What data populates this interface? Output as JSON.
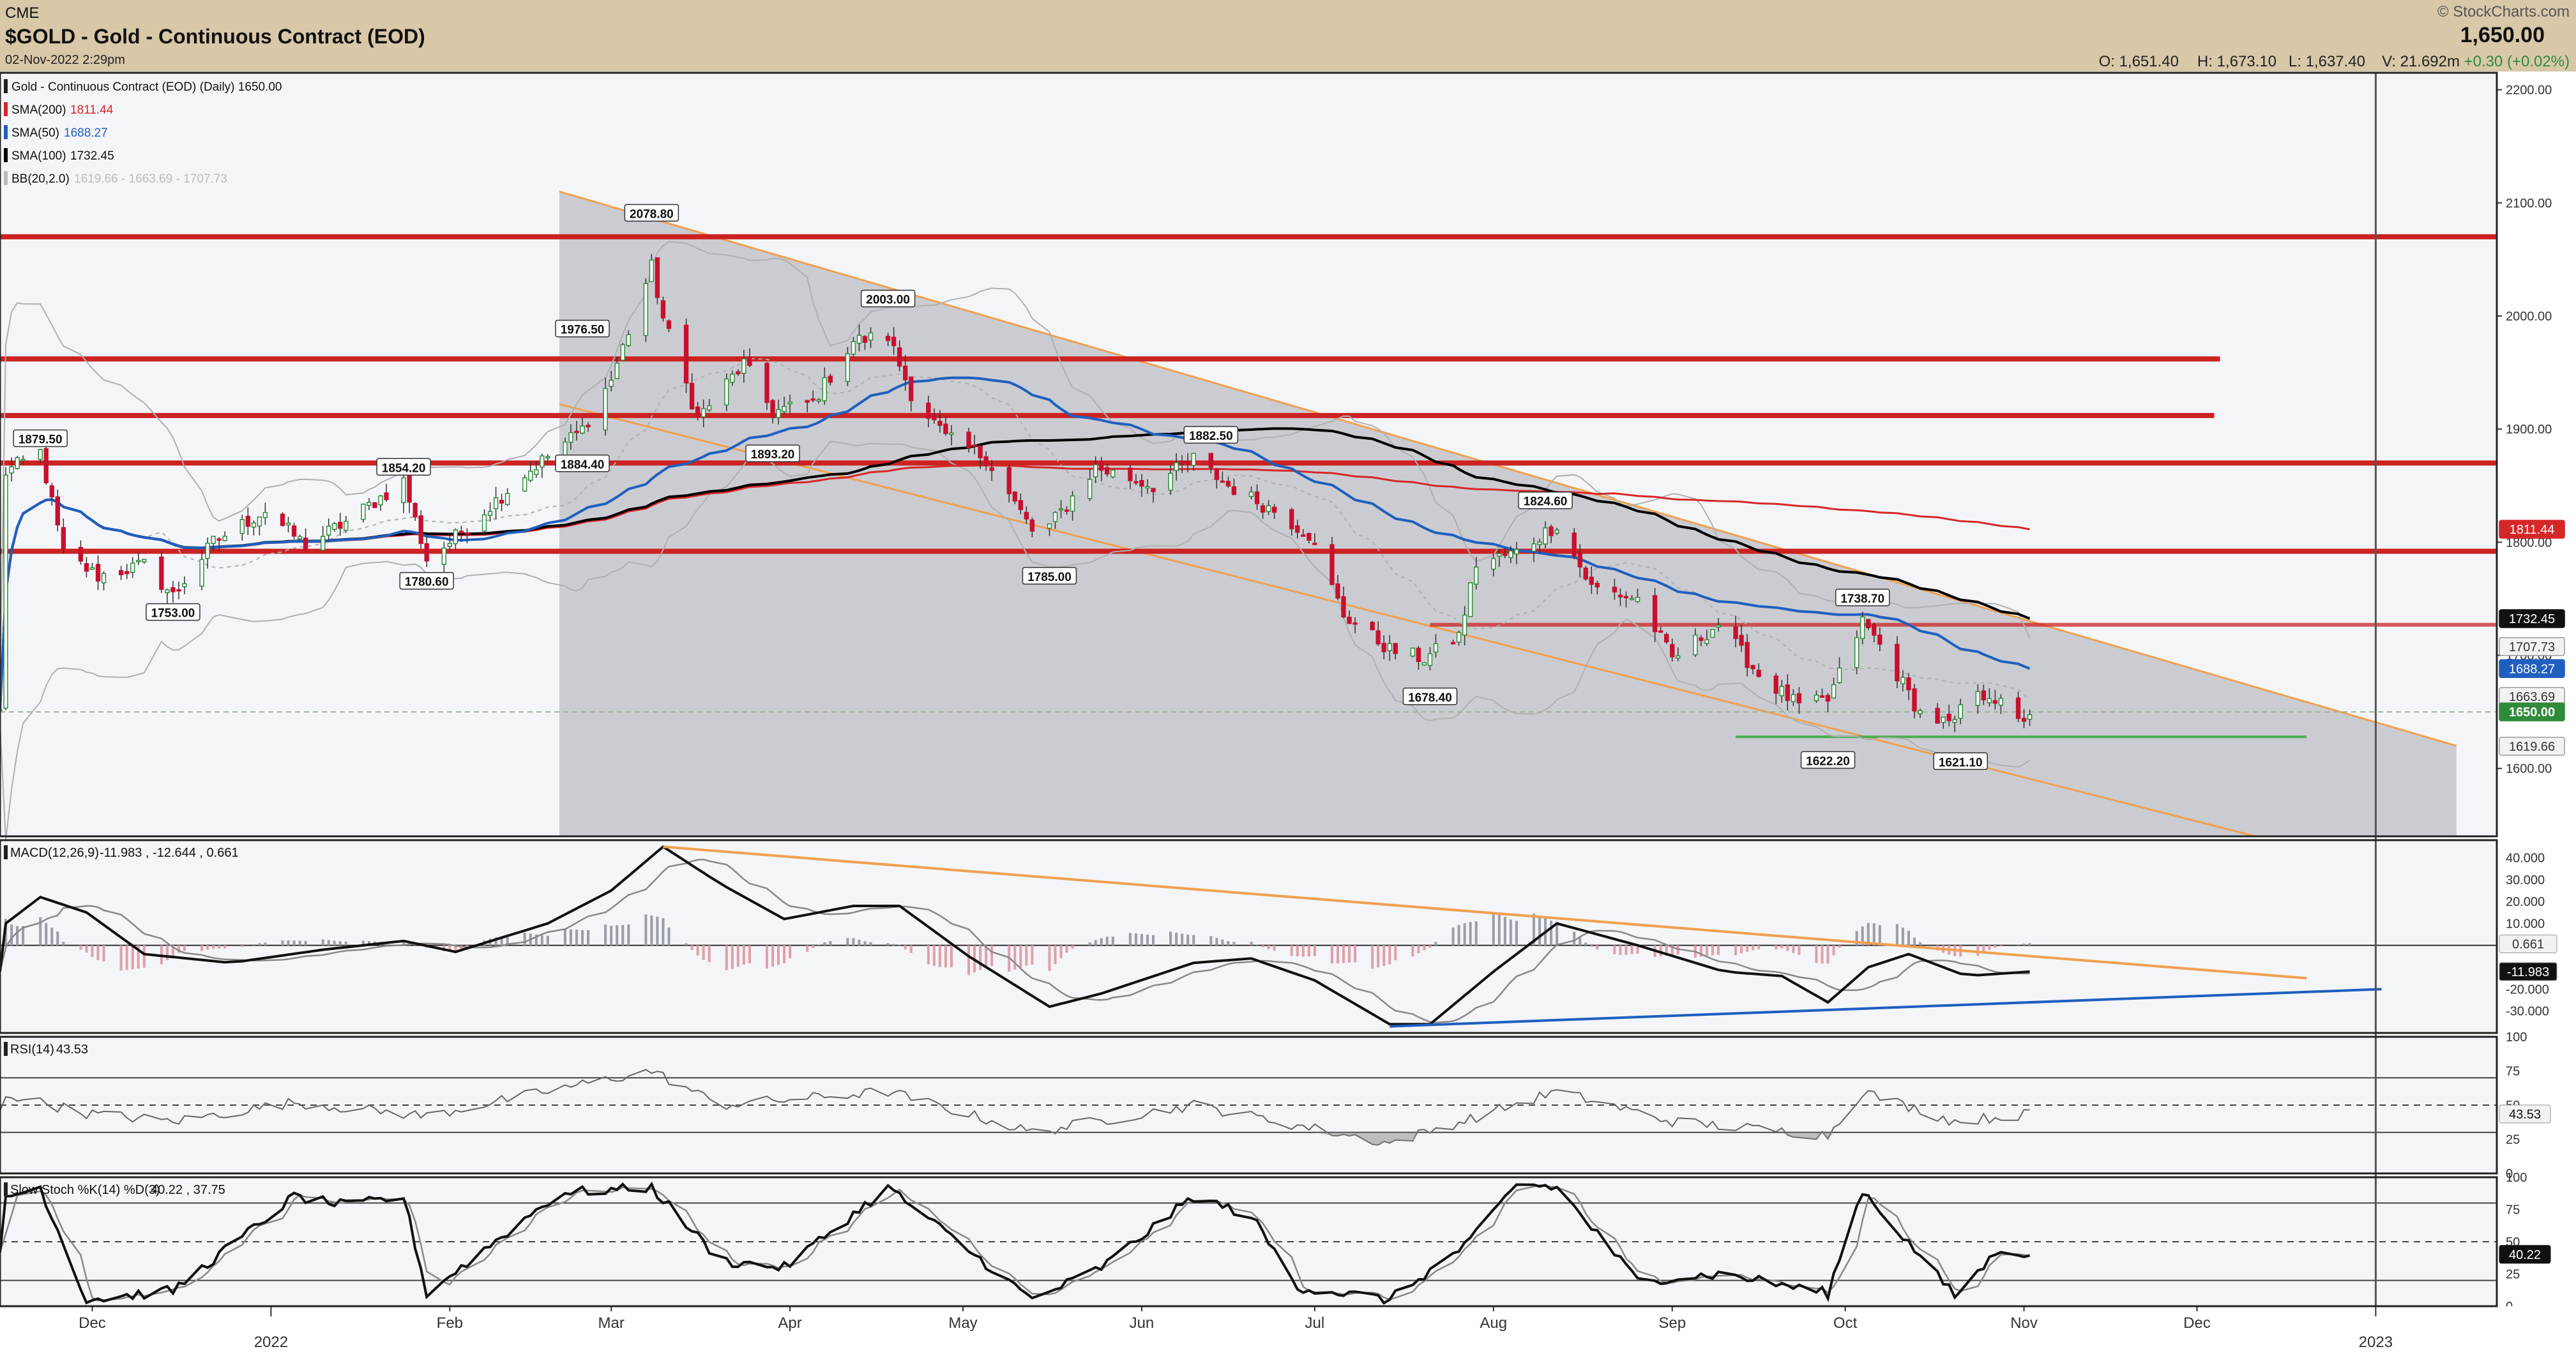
{
  "header": {
    "exchange": "CME",
    "title": "$GOLD - Gold - Continuous Contract (EOD)",
    "datetime": "02-Nov-2022 2:29pm",
    "copyright": "© StockCharts.com",
    "last_price": "1,650.00",
    "ohlc": {
      "open": "O: 1,651.40",
      "high": "H: 1,673.10",
      "low": "L: 1,637.40",
      "volume": "V: 21.692m",
      "change": "+0.30 (+0.02%)"
    }
  },
  "legend": {
    "main": "Gold - Continuous Contract (EOD) (Daily) 1650.00",
    "sma200": {
      "label": "SMA(200)",
      "value": "1811.44"
    },
    "sma50": {
      "label": "SMA(50)",
      "value": "1688.27"
    },
    "sma100": {
      "label": "SMA(100)",
      "value": "1732.45"
    },
    "bb": {
      "label": "BB(20,2.0)",
      "value": "1619.66 - 1663.69 - 1707.73"
    },
    "macd": {
      "label": "MACD(12,26,9)",
      "value": "-11.983 , -12.644 , 0.661"
    },
    "rsi": {
      "label": "RSI(14)",
      "value": "43.53"
    },
    "stoch": {
      "label": "Slow Stoch %K(14) %D(3)",
      "value": "40.22 , 37.75"
    }
  },
  "colors": {
    "up": "#2e8b3a",
    "down": "#c8102e",
    "sma200": "#d62728",
    "sma50": "#1f5fbf",
    "sma100": "#000000",
    "channel": "#f0a050",
    "resistance": "#cc2222",
    "support": "#4caf50",
    "bb": "#b0b0b0",
    "macd_signal": "#888888",
    "trend_blue": "#1f5fbf"
  },
  "chart_data": [
    {
      "type": "candlestick",
      "title": "$GOLD - Gold - Continuous Contract (EOD)",
      "ylim": [
        1540,
        2215
      ],
      "y_ticks": [
        1600,
        1700,
        1800,
        1900,
        2000,
        2100,
        2200
      ],
      "x_month_labels": [
        "Dec",
        "2022",
        "Feb",
        "Mar",
        "Apr",
        "May",
        "Jun",
        "Jul",
        "Aug",
        "Sep",
        "Oct",
        "Nov",
        "Dec",
        "2023"
      ],
      "x_month_dates": [
        "2021-12-01",
        "2022-01-01",
        "2022-02-01",
        "2022-03-01",
        "2022-04-01",
        "2022-05-01",
        "2022-06-01",
        "2022-07-01",
        "2022-08-01",
        "2022-09-01",
        "2022-10-01",
        "2022-11-01",
        "2022-12-01",
        "2023-01-01"
      ],
      "x_range": [
        "2021-11-15",
        "2023-01-22"
      ],
      "price_anchors": [
        {
          "date": "2021-11-16",
          "close": 1862
        },
        {
          "date": "2021-11-22",
          "close": 1879.5
        },
        {
          "date": "2021-11-26",
          "close": 1790
        },
        {
          "date": "2021-12-02",
          "close": 1770
        },
        {
          "date": "2021-12-10",
          "close": 1780
        },
        {
          "date": "2021-12-15",
          "close": 1753
        },
        {
          "date": "2021-12-22",
          "close": 1800
        },
        {
          "date": "2021-12-31",
          "close": 1828
        },
        {
          "date": "2022-01-07",
          "close": 1797
        },
        {
          "date": "2022-01-14",
          "close": 1818
        },
        {
          "date": "2022-01-24",
          "close": 1854.2
        },
        {
          "date": "2022-01-28",
          "close": 1785
        },
        {
          "date": "2022-02-01",
          "close": 1800
        },
        {
          "date": "2022-02-14",
          "close": 1860
        },
        {
          "date": "2022-02-24",
          "close": 1900
        },
        {
          "date": "2022-03-01",
          "close": 1944
        },
        {
          "date": "2022-03-08",
          "close": 2043
        },
        {
          "date": "2022-03-10",
          "close": 1998
        },
        {
          "date": "2022-03-16",
          "close": 1910
        },
        {
          "date": "2022-03-24",
          "close": 1958
        },
        {
          "date": "2022-03-29",
          "close": 1915
        },
        {
          "date": "2022-04-05",
          "close": 1924
        },
        {
          "date": "2022-04-12",
          "close": 1978
        },
        {
          "date": "2022-04-18",
          "close": 1982
        },
        {
          "date": "2022-04-22",
          "close": 1932
        },
        {
          "date": "2022-04-28",
          "close": 1892
        },
        {
          "date": "2022-05-05",
          "close": 1875
        },
        {
          "date": "2022-05-13",
          "close": 1810
        },
        {
          "date": "2022-05-16",
          "close": 1814
        },
        {
          "date": "2022-05-24",
          "close": 1866
        },
        {
          "date": "2022-06-03",
          "close": 1850
        },
        {
          "date": "2022-06-10",
          "close": 1874
        },
        {
          "date": "2022-06-16",
          "close": 1850
        },
        {
          "date": "2022-06-24",
          "close": 1828
        },
        {
          "date": "2022-06-30",
          "close": 1807
        },
        {
          "date": "2022-07-06",
          "close": 1736
        },
        {
          "date": "2022-07-14",
          "close": 1705
        },
        {
          "date": "2022-07-20",
          "close": 1697
        },
        {
          "date": "2022-07-26",
          "close": 1717
        },
        {
          "date": "2022-07-29",
          "close": 1781
        },
        {
          "date": "2022-08-05",
          "close": 1791
        },
        {
          "date": "2022-08-12",
          "close": 1816
        },
        {
          "date": "2022-08-18",
          "close": 1760
        },
        {
          "date": "2022-08-26",
          "close": 1750
        },
        {
          "date": "2022-09-01",
          "close": 1697
        },
        {
          "date": "2022-09-09",
          "close": 1728
        },
        {
          "date": "2022-09-16",
          "close": 1683
        },
        {
          "date": "2022-09-23",
          "close": 1655
        },
        {
          "date": "2022-09-28",
          "close": 1660
        },
        {
          "date": "2022-10-04",
          "close": 1730
        },
        {
          "date": "2022-10-07",
          "close": 1709
        },
        {
          "date": "2022-10-14",
          "close": 1649
        },
        {
          "date": "2022-10-20",
          "close": 1637
        },
        {
          "date": "2022-10-21",
          "close": 1656
        },
        {
          "date": "2022-10-26",
          "close": 1667
        },
        {
          "date": "2022-10-31",
          "close": 1640
        },
        {
          "date": "2022-11-02",
          "close": 1650
        }
      ],
      "annotations": [
        {
          "date": "2021-11-22",
          "price": 1879.5,
          "label": "1879.50"
        },
        {
          "date": "2021-12-15",
          "price": 1753.0,
          "label": "1753.00"
        },
        {
          "date": "2022-01-24",
          "price": 1854.2,
          "label": "1854.20"
        },
        {
          "date": "2022-01-28",
          "price": 1780.6,
          "label": "1780.60"
        },
        {
          "date": "2022-02-24",
          "price": 1976.5,
          "label": "1976.50"
        },
        {
          "date": "2022-02-24",
          "price": 1884.4,
          "label": "1884.40"
        },
        {
          "date": "2022-03-08",
          "price": 2078.8,
          "label": "2078.80"
        },
        {
          "date": "2022-03-29",
          "price": 1893.2,
          "label": "1893.20"
        },
        {
          "date": "2022-04-18",
          "price": 2003.0,
          "label": "2003.00"
        },
        {
          "date": "2022-05-16",
          "price": 1785.0,
          "label": "1785.00"
        },
        {
          "date": "2022-06-13",
          "price": 1882.5,
          "label": "1882.50"
        },
        {
          "date": "2022-07-21",
          "price": 1678.4,
          "label": "1678.40"
        },
        {
          "date": "2022-08-10",
          "price": 1824.6,
          "label": "1824.60"
        },
        {
          "date": "2022-09-28",
          "price": 1622.2,
          "label": "1622.20"
        },
        {
          "date": "2022-10-04",
          "price": 1738.7,
          "label": "1738.70"
        },
        {
          "date": "2022-10-21",
          "price": 1621.1,
          "label": "1621.10"
        }
      ],
      "horizontal_levels": [
        {
          "price": 2070,
          "from": "2021-11-15",
          "to": "2023-01-22"
        },
        {
          "price": 1962,
          "from": "2021-11-15",
          "to": "2022-12-05"
        },
        {
          "price": 1912,
          "from": "2021-11-15",
          "to": "2022-12-04"
        },
        {
          "price": 1870,
          "from": "2021-11-15",
          "to": "2023-01-22"
        },
        {
          "price": 1792,
          "from": "2021-11-15",
          "to": "2023-01-22"
        },
        {
          "price": 1727,
          "from": "2022-07-21",
          "to": "2023-01-22"
        }
      ],
      "support_line": {
        "price": 1628,
        "from": "2022-09-12",
        "to": "2022-12-20"
      },
      "channel": {
        "upper": [
          [
            "2022-02-20",
            2110
          ],
          [
            "2023-01-15",
            1620
          ]
        ],
        "lower": [
          [
            "2022-02-20",
            1922
          ],
          [
            "2022-12-15",
            1535
          ]
        ],
        "shade_end": "2023-01-15"
      },
      "price_badges": [
        {
          "value": "1811.44",
          "style": "sma200"
        },
        {
          "value": "1732.45",
          "style": "sma100"
        },
        {
          "value": "1707.73",
          "style": "bb"
        },
        {
          "value": "1688.27",
          "style": "sma50"
        },
        {
          "value": "1663.69",
          "style": "bb"
        },
        {
          "value": "1650.00",
          "style": "last"
        },
        {
          "value": "1619.66",
          "style": "bb"
        }
      ]
    },
    {
      "type": "line",
      "title": "MACD(12,26,9)",
      "ylim": [
        -40,
        48
      ],
      "y_ticks": [
        "40.000",
        "30.000",
        "20.000",
        "10.000",
        "-20.000",
        "-30.000"
      ],
      "y_tick_values": [
        40,
        30,
        20,
        10,
        -20,
        -30
      ],
      "macd_anchors": [
        {
          "date": "2021-11-16",
          "value": 10
        },
        {
          "date": "2021-11-22",
          "value": 22
        },
        {
          "date": "2021-11-30",
          "value": 15
        },
        {
          "date": "2021-12-10",
          "value": -4
        },
        {
          "date": "2021-12-25",
          "value": -8
        },
        {
          "date": "2022-01-10",
          "value": -2
        },
        {
          "date": "2022-01-24",
          "value": 2
        },
        {
          "date": "2022-02-02",
          "value": -3
        },
        {
          "date": "2022-02-18",
          "value": 10
        },
        {
          "date": "2022-03-01",
          "value": 25
        },
        {
          "date": "2022-03-10",
          "value": 45
        },
        {
          "date": "2022-03-20",
          "value": 28
        },
        {
          "date": "2022-03-31",
          "value": 12
        },
        {
          "date": "2022-04-12",
          "value": 18
        },
        {
          "date": "2022-04-20",
          "value": 18
        },
        {
          "date": "2022-05-02",
          "value": -5
        },
        {
          "date": "2022-05-16",
          "value": -28
        },
        {
          "date": "2022-05-25",
          "value": -22
        },
        {
          "date": "2022-06-10",
          "value": -8
        },
        {
          "date": "2022-06-20",
          "value": -6
        },
        {
          "date": "2022-07-01",
          "value": -16
        },
        {
          "date": "2022-07-14",
          "value": -36
        },
        {
          "date": "2022-07-21",
          "value": -36
        },
        {
          "date": "2022-08-01",
          "value": -12
        },
        {
          "date": "2022-08-12",
          "value": 10
        },
        {
          "date": "2022-08-26",
          "value": 0
        },
        {
          "date": "2022-09-10",
          "value": -12
        },
        {
          "date": "2022-09-20",
          "value": -14
        },
        {
          "date": "2022-09-28",
          "value": -26
        },
        {
          "date": "2022-10-05",
          "value": -10
        },
        {
          "date": "2022-10-12",
          "value": -4
        },
        {
          "date": "2022-10-22",
          "value": -14
        },
        {
          "date": "2022-11-02",
          "value": -12
        }
      ],
      "trendlines": [
        {
          "color": "channel",
          "from": [
            "2022-03-10",
            45
          ],
          "to": [
            "2022-12-20",
            -15
          ]
        },
        {
          "color": "trend_blue",
          "from": [
            "2022-07-14",
            -37
          ],
          "to": [
            "2023-01-02",
            -20
          ]
        }
      ],
      "badges": [
        "0.661",
        "-11.983"
      ]
    },
    {
      "type": "line",
      "title": "RSI(14)",
      "ylim": [
        0,
        100
      ],
      "y_ticks": [
        "100",
        "75",
        "50",
        "25",
        "0"
      ],
      "guides": [
        70,
        50,
        30
      ],
      "rsi_anchors": [
        {
          "date": "2021-11-16",
          "value": 58
        },
        {
          "date": "2021-11-30",
          "value": 44
        },
        {
          "date": "2021-12-15",
          "value": 38
        },
        {
          "date": "2022-01-05",
          "value": 52
        },
        {
          "date": "2022-01-28",
          "value": 42
        },
        {
          "date": "2022-02-20",
          "value": 62
        },
        {
          "date": "2022-03-08",
          "value": 75
        },
        {
          "date": "2022-03-20",
          "value": 50
        },
        {
          "date": "2022-04-18",
          "value": 60
        },
        {
          "date": "2022-05-13",
          "value": 30
        },
        {
          "date": "2022-06-10",
          "value": 50
        },
        {
          "date": "2022-07-14",
          "value": 22
        },
        {
          "date": "2022-07-28",
          "value": 40
        },
        {
          "date": "2022-08-12",
          "value": 60
        },
        {
          "date": "2022-09-01",
          "value": 38
        },
        {
          "date": "2022-09-28",
          "value": 28
        },
        {
          "date": "2022-10-04",
          "value": 60
        },
        {
          "date": "2022-10-20",
          "value": 38
        },
        {
          "date": "2022-11-02",
          "value": 43.53
        }
      ],
      "badge": "43.53"
    },
    {
      "type": "line",
      "title": "Slow Stoch %K(14) %D(3)",
      "ylim": [
        0,
        100
      ],
      "y_ticks": [
        "100",
        "75",
        "50",
        "25",
        "0"
      ],
      "guides": [
        80,
        50,
        20
      ],
      "stoch_anchors": [
        {
          "date": "2021-11-16",
          "value": 85
        },
        {
          "date": "2021-11-22",
          "value": 92
        },
        {
          "date": "2021-11-30",
          "value": 5
        },
        {
          "date": "2021-12-15",
          "value": 12
        },
        {
          "date": "2022-01-05",
          "value": 85
        },
        {
          "date": "2022-01-14",
          "value": 78
        },
        {
          "date": "2022-01-24",
          "value": 85
        },
        {
          "date": "2022-01-28",
          "value": 10
        },
        {
          "date": "2022-02-20",
          "value": 88
        },
        {
          "date": "2022-03-08",
          "value": 92
        },
        {
          "date": "2022-03-20",
          "value": 35
        },
        {
          "date": "2022-03-31",
          "value": 30
        },
        {
          "date": "2022-04-18",
          "value": 92
        },
        {
          "date": "2022-05-13",
          "value": 5
        },
        {
          "date": "2022-05-25",
          "value": 30
        },
        {
          "date": "2022-06-10",
          "value": 85
        },
        {
          "date": "2022-06-20",
          "value": 70
        },
        {
          "date": "2022-06-28",
          "value": 15
        },
        {
          "date": "2022-07-14",
          "value": 5
        },
        {
          "date": "2022-07-28",
          "value": 50
        },
        {
          "date": "2022-08-05",
          "value": 95
        },
        {
          "date": "2022-08-12",
          "value": 92
        },
        {
          "date": "2022-08-26",
          "value": 20
        },
        {
          "date": "2022-09-10",
          "value": 25
        },
        {
          "date": "2022-09-28",
          "value": 10
        },
        {
          "date": "2022-10-04",
          "value": 90
        },
        {
          "date": "2022-10-20",
          "value": 8
        },
        {
          "date": "2022-10-28",
          "value": 45
        },
        {
          "date": "2022-11-02",
          "value": 40.22
        }
      ],
      "badge": "40.22"
    }
  ]
}
